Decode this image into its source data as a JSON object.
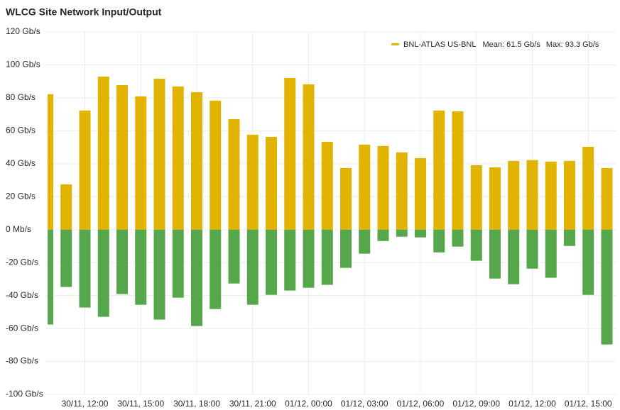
{
  "chart_data": {
    "type": "bar",
    "title": "WLCG Site Network Input/Output",
    "categories": [
      null,
      null,
      "30/11, 12:00",
      null,
      null,
      "30/11, 15:00",
      null,
      null,
      "30/11, 18:00",
      null,
      null,
      "30/11, 21:00",
      null,
      null,
      "01/12, 00:00",
      null,
      null,
      "01/12, 03:00",
      null,
      null,
      "01/12, 06:00",
      null,
      null,
      "01/12, 09:00",
      null,
      null,
      "01/12, 12:00",
      null,
      null,
      "01/12, 15:00",
      null
    ],
    "series": [
      {
        "name": "BNL-ATLAS US-BNL",
        "legend_stats": [
          "Mean: 61.5 Gb/s",
          "Max: 93.3 Gb/s"
        ],
        "color": "#E0B400",
        "values": [
          82.2,
          27.5,
          72.3,
          92.9,
          87.7,
          80.9,
          91.6,
          86.9,
          83.4,
          78.3,
          67.1,
          57.6,
          56.3,
          92,
          88.2,
          53.3,
          37.4,
          51.6,
          50.8,
          46.9,
          43.4,
          72.3,
          71.8,
          39.1,
          37.8,
          41.7,
          42.2,
          41.3,
          41.7,
          50.3,
          37.4
        ]
      },
      {
        "color": "#56A64B",
        "values": [
          -57.6,
          -34.8,
          -47.3,
          -52.9,
          -39.1,
          -45.6,
          -54.6,
          -41.3,
          -58.5,
          -48.2,
          -32.7,
          -45.6,
          -39.6,
          -37,
          -35.3,
          -33.5,
          -23.2,
          -14.6,
          -6.9,
          -4.3,
          -4.7,
          -13.8,
          -10.3,
          -18.9,
          -29.7,
          -33.1,
          -23.7,
          -29.2,
          -9.9,
          -39.6,
          -69.7
        ]
      }
    ],
    "ylim": [
      -100,
      120
    ],
    "yticks": [
      {
        "value": -100,
        "label": "-100 Gb/s"
      },
      {
        "value": -80,
        "label": "-80 Gb/s"
      },
      {
        "value": -60,
        "label": "-60 Gb/s"
      },
      {
        "value": -40,
        "label": "-40 Gb/s"
      },
      {
        "value": -20,
        "label": "-20 Gb/s"
      },
      {
        "value": 0,
        "label": "0 Mb/s"
      },
      {
        "value": 20,
        "label": "20 Gb/s"
      },
      {
        "value": 40,
        "label": "40 Gb/s"
      },
      {
        "value": 60,
        "label": "60 Gb/s"
      },
      {
        "value": 80,
        "label": "80 Gb/s"
      },
      {
        "value": 100,
        "label": "100 Gb/s"
      },
      {
        "value": 120,
        "label": "120 Gb/s"
      }
    ],
    "grid": true,
    "legend": "top-right"
  }
}
